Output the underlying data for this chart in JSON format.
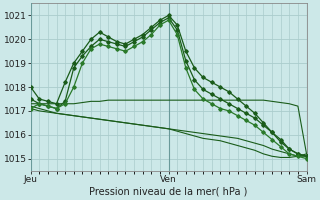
{
  "xlabel": "Pression niveau de la mer( hPa )",
  "bg_color": "#cce8e8",
  "grid_color": "#aacccc",
  "line_color_dark": "#1a5c1a",
  "line_color_med": "#2a7a2a",
  "ylim": [
    1014.5,
    1021.5
  ],
  "yticks": [
    1015,
    1016,
    1017,
    1018,
    1019,
    1020,
    1021
  ],
  "day_labels": [
    "Jeu",
    "Ven",
    "Sam"
  ],
  "day_positions": [
    0,
    0.5,
    1.0
  ],
  "n_points": 33,
  "series_upper": [
    [
      1018.0,
      1017.5,
      1017.4,
      1017.3,
      1018.2,
      1019.0,
      1019.5,
      1020.0,
      1020.3,
      1020.1,
      1019.9,
      1019.8,
      1020.0,
      1020.2,
      1020.5,
      1020.8,
      1021.0,
      1020.6,
      1019.5,
      1018.8,
      1018.4,
      1018.2,
      1018.0,
      1017.8,
      1017.5,
      1017.2,
      1016.9,
      1016.5,
      1016.1,
      1015.7,
      1015.4,
      1015.2,
      1015.1
    ],
    [
      1017.5,
      1017.3,
      1017.2,
      1017.1,
      1017.4,
      1018.8,
      1019.3,
      1019.7,
      1020.0,
      1019.9,
      1019.8,
      1019.7,
      1019.9,
      1020.1,
      1020.4,
      1020.7,
      1020.9,
      1020.4,
      1019.1,
      1018.3,
      1017.9,
      1017.7,
      1017.5,
      1017.3,
      1017.1,
      1016.9,
      1016.7,
      1016.4,
      1016.1,
      1015.8,
      1015.4,
      1015.2,
      1015.1
    ],
    [
      1017.1,
      1017.3,
      1017.2,
      1017.1,
      1017.3,
      1018.0,
      1019.0,
      1019.6,
      1019.8,
      1019.7,
      1019.6,
      1019.5,
      1019.7,
      1019.9,
      1020.2,
      1020.6,
      1020.8,
      1020.2,
      1018.8,
      1017.9,
      1017.5,
      1017.3,
      1017.1,
      1017.0,
      1016.8,
      1016.6,
      1016.4,
      1016.1,
      1015.8,
      1015.5,
      1015.2,
      1015.1,
      1015.0
    ]
  ],
  "series_lower": [
    [
      1017.3,
      1017.3,
      1017.3,
      1017.3,
      1017.3,
      1017.3,
      1017.35,
      1017.4,
      1017.4,
      1017.45,
      1017.45,
      1017.45,
      1017.45,
      1017.45,
      1017.45,
      1017.45,
      1017.45,
      1017.45,
      1017.45,
      1017.45,
      1017.45,
      1017.45,
      1017.45,
      1017.45,
      1017.45,
      1017.45,
      1017.45,
      1017.45,
      1017.4,
      1017.35,
      1017.3,
      1017.2,
      1015.2
    ],
    [
      1017.1,
      1017.0,
      1016.95,
      1016.9,
      1016.85,
      1016.8,
      1016.75,
      1016.7,
      1016.65,
      1016.6,
      1016.55,
      1016.5,
      1016.45,
      1016.4,
      1016.35,
      1016.3,
      1016.25,
      1016.2,
      1016.15,
      1016.1,
      1016.05,
      1016.0,
      1015.95,
      1015.9,
      1015.85,
      1015.75,
      1015.65,
      1015.55,
      1015.4,
      1015.3,
      1015.2,
      1015.1,
      1015.1
    ],
    [
      1017.2,
      1017.1,
      1017.0,
      1016.9,
      1016.85,
      1016.8,
      1016.75,
      1016.7,
      1016.65,
      1016.6,
      1016.55,
      1016.5,
      1016.45,
      1016.4,
      1016.35,
      1016.3,
      1016.25,
      1016.15,
      1016.05,
      1015.95,
      1015.85,
      1015.8,
      1015.75,
      1015.65,
      1015.55,
      1015.45,
      1015.35,
      1015.2,
      1015.1,
      1015.05,
      1015.05,
      1015.1,
      1015.2
    ]
  ]
}
